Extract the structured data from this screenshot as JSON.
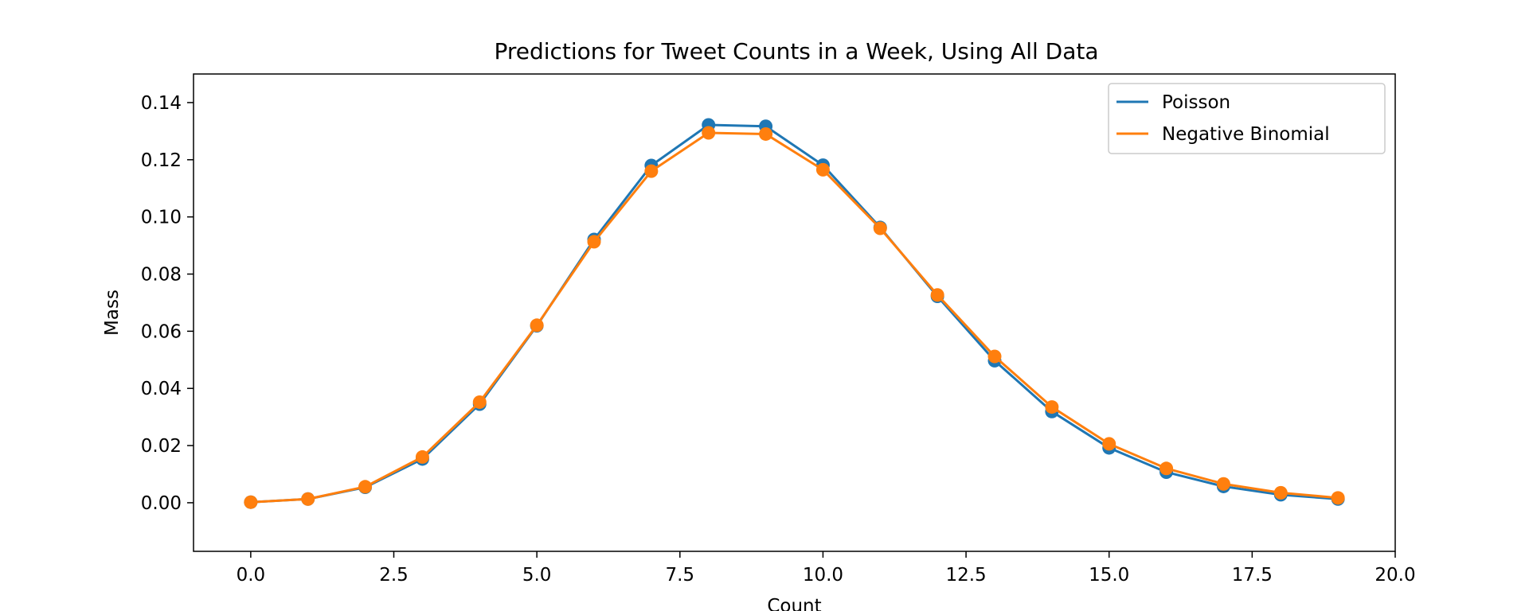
{
  "chart_data": {
    "type": "line",
    "title": "Predictions for Tweet Counts in a Week, Using All Data",
    "xlabel": "Count",
    "ylabel": "Mass",
    "xlim": [
      -1,
      20
    ],
    "ylim": [
      -0.017,
      0.15
    ],
    "x_ticks": [
      "0.0",
      "2.5",
      "5.0",
      "7.5",
      "10.0",
      "12.5",
      "15.0",
      "17.5",
      "20.0"
    ],
    "y_ticks": [
      "0.00",
      "0.02",
      "0.04",
      "0.06",
      "0.08",
      "0.10",
      "0.12",
      "0.14"
    ],
    "grid": false,
    "legend_position": "top-right",
    "x": [
      0,
      1,
      2,
      3,
      4,
      5,
      6,
      7,
      8,
      9,
      10,
      11,
      12,
      13,
      14,
      15,
      16,
      17,
      18,
      19
    ],
    "series": [
      {
        "name": "Poisson",
        "color": "#1f77b4",
        "values": [
          0.0002,
          0.0013,
          0.0054,
          0.0153,
          0.0345,
          0.0619,
          0.0921,
          0.118,
          0.1322,
          0.1317,
          0.1181,
          0.0963,
          0.0722,
          0.0497,
          0.0319,
          0.0192,
          0.0107,
          0.0057,
          0.0028,
          0.0013
        ]
      },
      {
        "name": "Negative Binomial",
        "color": "#ff7f0e",
        "values": [
          0.0002,
          0.0013,
          0.0056,
          0.016,
          0.0352,
          0.0621,
          0.0913,
          0.116,
          0.1294,
          0.129,
          0.1165,
          0.096,
          0.0727,
          0.0512,
          0.0335,
          0.0206,
          0.012,
          0.0066,
          0.0035,
          0.0017
        ]
      }
    ]
  }
}
